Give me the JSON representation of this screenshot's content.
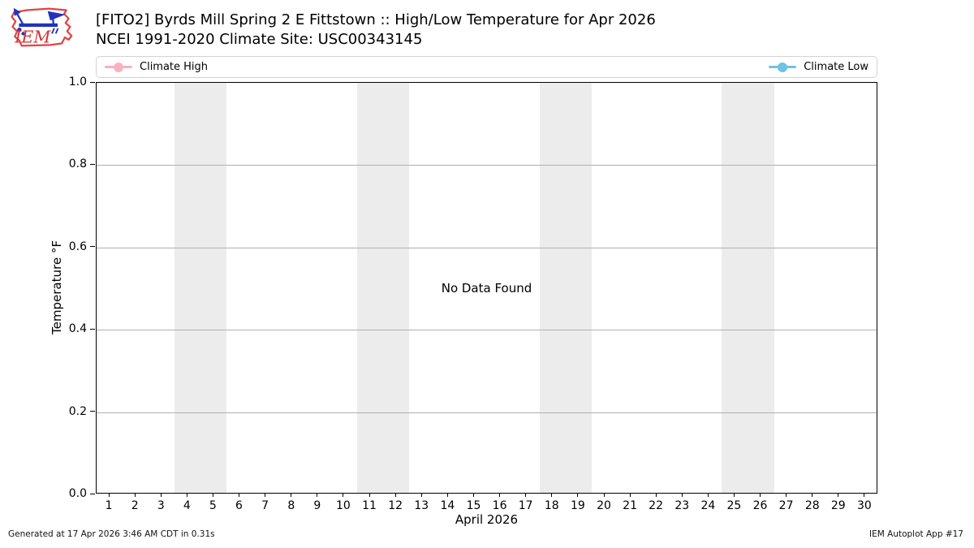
{
  "header": {
    "title_line1": "[FITO2] Byrds Mill Spring 2 E Fittstown :: High/Low Temperature for Apr 2026",
    "title_line2": "NCEI 1991-2020 Climate Site: USC00343145",
    "logo_text": "IEM"
  },
  "legend": {
    "high_label": "Climate High",
    "low_label": "Climate Low"
  },
  "chart_data": {
    "type": "line",
    "title": "[FITO2] Byrds Mill Spring 2 E Fittstown :: High/Low Temperature for Apr 2026",
    "subtitle": "NCEI 1991-2020 Climate Site: USC00343145",
    "xlabel": "April 2026",
    "ylabel": "Temperature °F",
    "ylim": [
      0.0,
      1.0
    ],
    "ytick_labels": [
      "0.0",
      "0.2",
      "0.4",
      "0.6",
      "0.8",
      "1.0"
    ],
    "xticks": [
      1,
      2,
      3,
      4,
      5,
      6,
      7,
      8,
      9,
      10,
      11,
      12,
      13,
      14,
      15,
      16,
      17,
      18,
      19,
      20,
      21,
      22,
      23,
      24,
      25,
      26,
      27,
      28,
      29,
      30
    ],
    "x_range_days": 30,
    "series": [
      {
        "name": "Climate High",
        "color": "#f7b2c1",
        "values": []
      },
      {
        "name": "Climate Low",
        "color": "#6ec3e4",
        "values": []
      }
    ],
    "no_data_message": "No Data Found",
    "weekend_bands_days": [
      [
        4,
        5
      ],
      [
        11,
        12
      ],
      [
        18,
        19
      ],
      [
        25,
        26
      ]
    ],
    "band_color": "#ececec",
    "grid_color": "#b0b0b0",
    "grid": true,
    "legend_position": "top"
  },
  "colors": {
    "climate_high": "#f7b2c1",
    "climate_low": "#6ec3e4",
    "axis": "#000000",
    "logo_red": "#e04444",
    "logo_blue": "#2233bb"
  },
  "footer": {
    "left": "Generated at 17 Apr 2026 3:46 AM CDT in 0.31s",
    "right": "IEM Autoplot App #17"
  }
}
